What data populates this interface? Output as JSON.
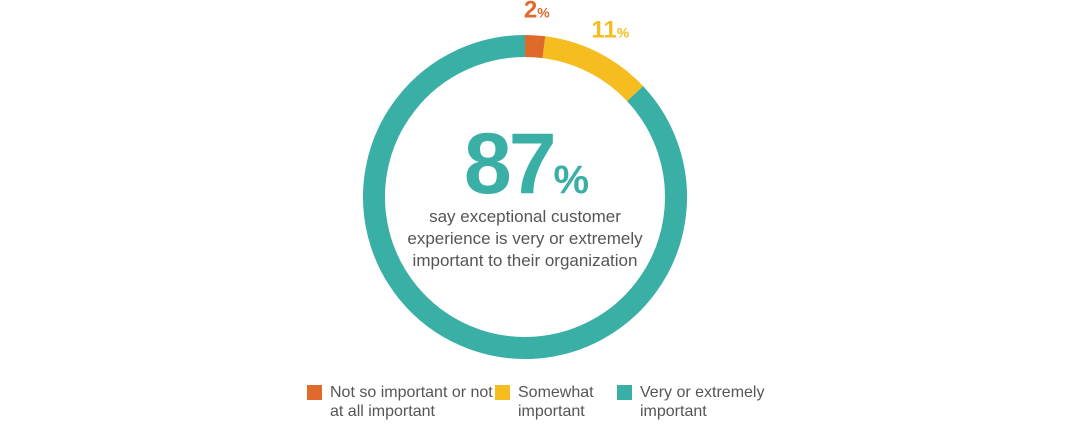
{
  "chart_data": {
    "type": "donut",
    "categories": [
      "Not so important or not at all important",
      "Somewhat important",
      "Very or extremely important"
    ],
    "values": [
      2,
      11,
      87
    ],
    "value_labels": [
      "2%",
      "11%",
      "87%"
    ],
    "colors": [
      "#e06a2c",
      "#f5bd1f",
      "#3aafa6"
    ],
    "center_text": "say exceptional customer experience is very or extremely important to their organization"
  }
}
